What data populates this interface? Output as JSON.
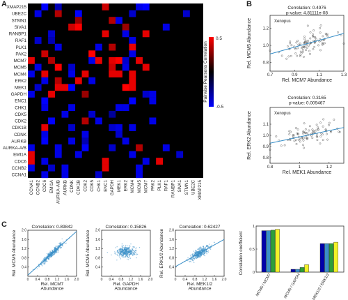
{
  "panel_labels": [
    "A",
    "B",
    "C"
  ],
  "chart_data": [
    {
      "type": "heatmap",
      "panel": "A",
      "colorbar_label": "Pairwise Pearsons Correlation",
      "colorbar_range": [
        -0.5,
        0.5
      ],
      "colorbar_ticks": [
        "0.5",
        "-0.5"
      ],
      "colors": {
        "low": "#0000ff",
        "mid": "#000000",
        "high": "#ff0000"
      },
      "rows": [
        "XMAP215",
        "UBE2C",
        "STMN1",
        "SIVA1",
        "RANBP1",
        "RAF1",
        "PLK1",
        "PAK2",
        "MCM7",
        "MCM5",
        "MCM4",
        "ERK2",
        "MEK1",
        "GAPDH",
        "ENC1",
        "CHK1",
        "CDK5",
        "CDK2",
        "CDK1B",
        "CDNK",
        "AURKB",
        "AURKA-A/B",
        "EMI1A",
        "CDC6",
        "CCNB2",
        "CCNA1"
      ],
      "columns": [
        "CCNA1",
        "CCNB2",
        "CDC6",
        "EMI1A",
        "AURKA-A/B",
        "AURKB",
        "CDNK",
        "CDK1B",
        "CDK2",
        "CDK5",
        "CHK1",
        "ENC1",
        "GAPDH",
        "MEK1",
        "ERK2",
        "MCM4",
        "MCM5",
        "MCM7",
        "PAK2",
        "PLK1",
        "RAF1",
        "RANBP1",
        "SIVA1",
        "STMN1",
        "UBE2C",
        "XMAP215"
      ],
      "cells": [
        [
          0,
          2,
          -0.5
        ],
        [
          0,
          4,
          -0.35
        ],
        [
          0,
          11,
          0.4
        ],
        [
          0,
          16,
          -0.45
        ],
        [
          0,
          17,
          -0.5
        ],
        [
          1,
          1,
          -0.45
        ],
        [
          1,
          4,
          0.35
        ],
        [
          1,
          7,
          -0.5
        ],
        [
          1,
          15,
          -0.4
        ],
        [
          1,
          23,
          -0.4
        ],
        [
          2,
          7,
          0.3
        ],
        [
          2,
          12,
          0.35
        ],
        [
          2,
          13,
          -0.45
        ],
        [
          3,
          6,
          0.4
        ],
        [
          3,
          7,
          0.5
        ],
        [
          3,
          14,
          0.3
        ],
        [
          3,
          20,
          -0.45
        ],
        [
          4,
          3,
          -0.4
        ],
        [
          4,
          11,
          0.45
        ],
        [
          4,
          14,
          -0.45
        ],
        [
          4,
          17,
          0.45
        ],
        [
          5,
          1,
          -0.4
        ],
        [
          5,
          3,
          -0.35
        ],
        [
          5,
          15,
          -0.45
        ],
        [
          6,
          4,
          -0.45
        ],
        [
          6,
          10,
          -0.45
        ],
        [
          6,
          12,
          0.35
        ],
        [
          6,
          15,
          0.45
        ],
        [
          7,
          2,
          0.4
        ],
        [
          7,
          9,
          0.5
        ],
        [
          7,
          15,
          -0.45
        ],
        [
          8,
          0,
          0.45
        ],
        [
          8,
          3,
          0.35
        ],
        [
          8,
          9,
          -0.45
        ],
        [
          8,
          10,
          0.45
        ],
        [
          8,
          12,
          0.45
        ],
        [
          8,
          13,
          0.5
        ],
        [
          8,
          14,
          -0.4
        ],
        [
          8,
          16,
          0.45
        ],
        [
          9,
          1,
          -0.45
        ],
        [
          9,
          4,
          0.5
        ],
        [
          9,
          6,
          -0.4
        ],
        [
          9,
          12,
          0.4
        ],
        [
          9,
          14,
          -0.45
        ],
        [
          9,
          17,
          0.45
        ],
        [
          10,
          0,
          -0.45
        ],
        [
          10,
          2,
          0.45
        ],
        [
          10,
          6,
          -0.45
        ],
        [
          10,
          8,
          0.45
        ],
        [
          10,
          12,
          0.45
        ],
        [
          10,
          13,
          0.45
        ],
        [
          10,
          15,
          0.45
        ],
        [
          11,
          2,
          -0.45
        ],
        [
          11,
          4,
          0.35
        ],
        [
          11,
          7,
          0.45
        ],
        [
          11,
          9,
          -0.45
        ],
        [
          11,
          15,
          0.45
        ],
        [
          12,
          1,
          -0.4
        ],
        [
          12,
          4,
          0.45
        ],
        [
          12,
          5,
          0.45
        ],
        [
          12,
          6,
          -0.5
        ],
        [
          12,
          14,
          0.5
        ],
        [
          12,
          15,
          0.45
        ],
        [
          13,
          0,
          -0.45
        ],
        [
          13,
          3,
          0.45
        ],
        [
          13,
          8,
          0.3
        ],
        [
          13,
          17,
          -0.4
        ],
        [
          13,
          18,
          -0.45
        ],
        [
          14,
          2,
          -0.5
        ],
        [
          14,
          15,
          -0.5
        ],
        [
          14,
          18,
          -0.45
        ],
        [
          15,
          2,
          -0.45
        ],
        [
          15,
          6,
          -0.45
        ],
        [
          15,
          13,
          -0.45
        ],
        [
          15,
          14,
          -0.45
        ],
        [
          16,
          5,
          -0.45
        ],
        [
          16,
          9,
          -0.4
        ],
        [
          16,
          12,
          -0.3
        ],
        [
          17,
          3,
          -0.5
        ],
        [
          17,
          8,
          0.35
        ],
        [
          17,
          10,
          -0.45
        ],
        [
          17,
          18,
          -0.45
        ],
        [
          18,
          2,
          0.45
        ],
        [
          18,
          6,
          -0.4
        ],
        [
          18,
          12,
          -0.4
        ],
        [
          18,
          13,
          -0.45
        ],
        [
          18,
          15,
          -0.45
        ],
        [
          19,
          2,
          -0.45
        ],
        [
          19,
          8,
          -0.45
        ],
        [
          19,
          13,
          -0.4
        ],
        [
          20,
          2,
          -0.5
        ],
        [
          20,
          6,
          -0.45
        ],
        [
          20,
          8,
          -0.35
        ],
        [
          20,
          14,
          -0.45
        ],
        [
          21,
          0,
          -0.45
        ],
        [
          21,
          4,
          -0.45
        ],
        [
          21,
          8,
          -0.5
        ],
        [
          21,
          12,
          -0.4
        ],
        [
          21,
          16,
          0.35
        ],
        [
          21,
          20,
          -0.45
        ],
        [
          22,
          0,
          0.45
        ],
        [
          22,
          4,
          -0.45
        ],
        [
          22,
          7,
          -0.45
        ],
        [
          22,
          15,
          -0.45
        ],
        [
          22,
          22,
          -0.4
        ],
        [
          23,
          0,
          0.45
        ],
        [
          23,
          2,
          -0.45
        ],
        [
          23,
          11,
          0.45
        ],
        [
          23,
          17,
          -0.45
        ],
        [
          23,
          19,
          0.45
        ],
        [
          24,
          0,
          -0.45
        ],
        [
          24,
          3,
          -0.4
        ],
        [
          24,
          5,
          -0.45
        ],
        [
          24,
          11,
          0.45
        ],
        [
          24,
          16,
          -0.45
        ],
        [
          25,
          2,
          -0.45
        ],
        [
          25,
          5,
          -0.45
        ],
        [
          25,
          10,
          -0.4
        ],
        [
          25,
          16,
          -0.45
        ]
      ]
    },
    {
      "type": "scatter",
      "panel": "B-top",
      "correlation_text": "Correlation: 0.4976",
      "pvalue_text": "p-value: 4.81111e-08",
      "legend": "Xenopus",
      "xlabel": "Rel. MCM7 Abundance",
      "ylabel": "Rel. MCM5 Abundance",
      "xlim": [
        0.7,
        1.3
      ],
      "ylim": [
        0.7,
        1.35
      ],
      "xticks": [
        "0.7",
        "0.9",
        "1.1",
        "1.3"
      ],
      "yticks": [
        "0.8",
        "1.0",
        "1.2"
      ],
      "fit": [
        [
          0.7,
          0.9
        ],
        [
          1.3,
          1.14
        ]
      ],
      "color": "#3a8fc8"
    },
    {
      "type": "scatter",
      "panel": "B-bottom",
      "correlation_text": "Correlation: 0.3165",
      "pvalue_text": "p-value: 0.009467",
      "legend": "Xenopus",
      "xlabel": "Rel. MEK1 Abundance",
      "ylabel": "Rel. ERK2 Abundance",
      "xlim": [
        0.8,
        1.3
      ],
      "ylim": [
        0.75,
        1.25
      ],
      "xticks": [
        "0.8",
        "1",
        "1.2"
      ],
      "yticks": [
        "0.8",
        "0.9",
        "1.0",
        "1.1"
      ],
      "fit": [
        [
          0.8,
          0.93
        ],
        [
          1.3,
          1.07
        ]
      ],
      "color": "#3a8fc8"
    },
    {
      "type": "scatter",
      "panel": "C-1",
      "correlation_text": "Correlation: 0.89842",
      "xlabel": "Rel. MCM7 Abundance",
      "ylabel": "Rel. MCM5 Abundance",
      "xlim": [
        0,
        2
      ],
      "ylim": [
        0,
        2
      ],
      "xticks": [
        "0",
        "0.4",
        "0.8",
        "1.2",
        "1.6",
        "2.0"
      ],
      "yticks": [
        "0.4",
        "0.8",
        "1.2",
        "1.6",
        "2.0"
      ],
      "fit": [
        [
          0,
          0.05
        ],
        [
          2,
          1.95
        ]
      ],
      "color": "#3a8fc8"
    },
    {
      "type": "scatter",
      "panel": "C-2",
      "correlation_text": "Correlation: 0.15826",
      "xlabel": "Rel. GAPDH Abundance",
      "ylabel": "Rel. MCM5 Abundance",
      "xlim": [
        0,
        2
      ],
      "ylim": [
        0,
        2
      ],
      "xticks": [
        "0",
        "0.4",
        "0.8",
        "1.2",
        "1.6",
        "2.0"
      ],
      "yticks": [
        "0.4",
        "0.8",
        "1.2",
        "1.6",
        "2.0"
      ],
      "color": "#3a8fc8"
    },
    {
      "type": "scatter",
      "panel": "C-3",
      "correlation_text": "Correlation: 0.62427",
      "xlabel": "Rel. MEK1/2 Abundance",
      "ylabel": "Rel. ERK1/2 Abundance",
      "xlim": [
        0,
        2
      ],
      "ylim": [
        0,
        2
      ],
      "xticks": [
        "0",
        "0.4",
        "0.8",
        "1.2",
        "1.6",
        "2.0"
      ],
      "yticks": [
        "0.4",
        "0.8",
        "1.2",
        "1.6",
        "2.0"
      ],
      "fit": [
        [
          0,
          0.42
        ],
        [
          2,
          1.6
        ]
      ],
      "color": "#3a8fc8"
    },
    {
      "type": "bar",
      "panel": "C-4",
      "categories": [
        "MCM5 / MCM7",
        "MCM5 / GAPDH",
        "MEK1/2 / ERK1/2"
      ],
      "series": [
        {
          "color": "#0000aa",
          "values": [
            0.9,
            0.06,
            0.62
          ]
        },
        {
          "color": "#3a8fc8",
          "values": [
            0.9,
            0.06,
            0.62
          ]
        },
        {
          "color": "#2e9e3a",
          "values": [
            0.91,
            0.1,
            0.62
          ]
        },
        {
          "color": "#f2f227",
          "values": [
            0.93,
            0.16,
            0.65
          ]
        }
      ],
      "ylabel": "Correlation coefficient",
      "ylim": [
        0,
        1
      ],
      "yticks": [
        "0",
        "0.5",
        "1"
      ]
    }
  ]
}
